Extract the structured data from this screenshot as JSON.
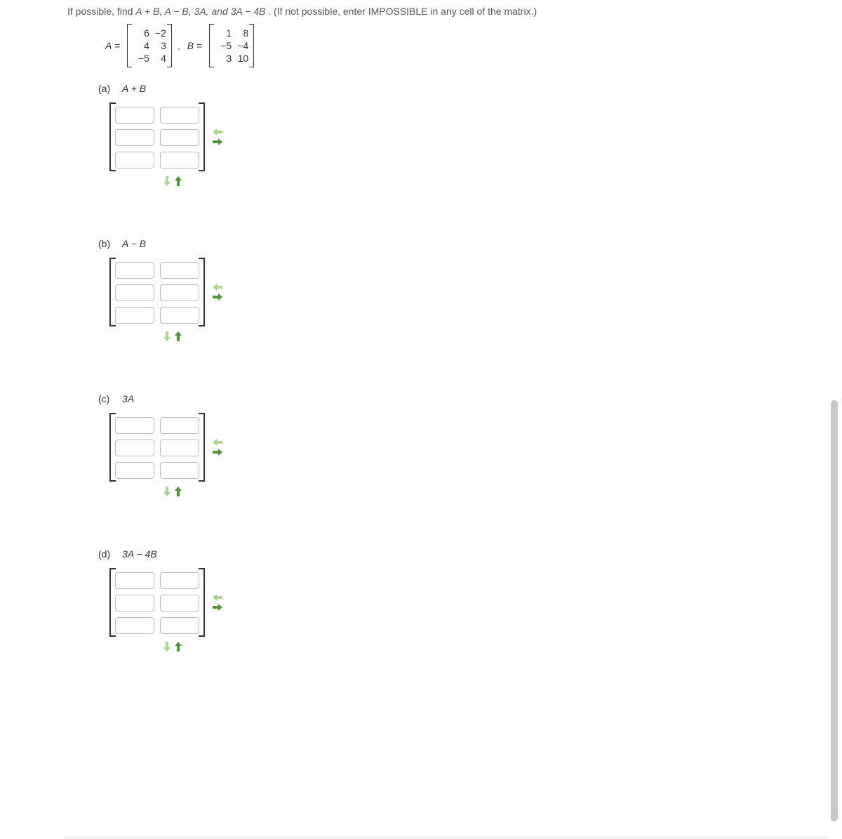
{
  "prompt": {
    "pre": "If possible, find ",
    "expr": "A + B, A − B, 3A, and 3A − 4B",
    "post": ". (If not possible, enter IMPOSSIBLE in any cell of the matrix.)"
  },
  "matrices": {
    "A_label": "A =",
    "A": [
      [
        "6",
        "−2"
      ],
      [
        "4",
        "3"
      ],
      [
        "−5",
        "4"
      ]
    ],
    "comma": ",",
    "B_label": "B =",
    "B": [
      [
        "1",
        "8"
      ],
      [
        "−5",
        "−4"
      ],
      [
        "3",
        "10"
      ]
    ]
  },
  "parts": [
    {
      "tag": "(a)",
      "expr": "A + B"
    },
    {
      "tag": "(b)",
      "expr": "A − B"
    },
    {
      "tag": "(c)",
      "expr": "3A"
    },
    {
      "tag": "(d)",
      "expr": "3A − 4B"
    }
  ],
  "answer_matrix": {
    "rows": 3,
    "cols": 2
  },
  "arrow_colors": {
    "light": "#a7d88b",
    "dark": "#4b9b2e"
  }
}
